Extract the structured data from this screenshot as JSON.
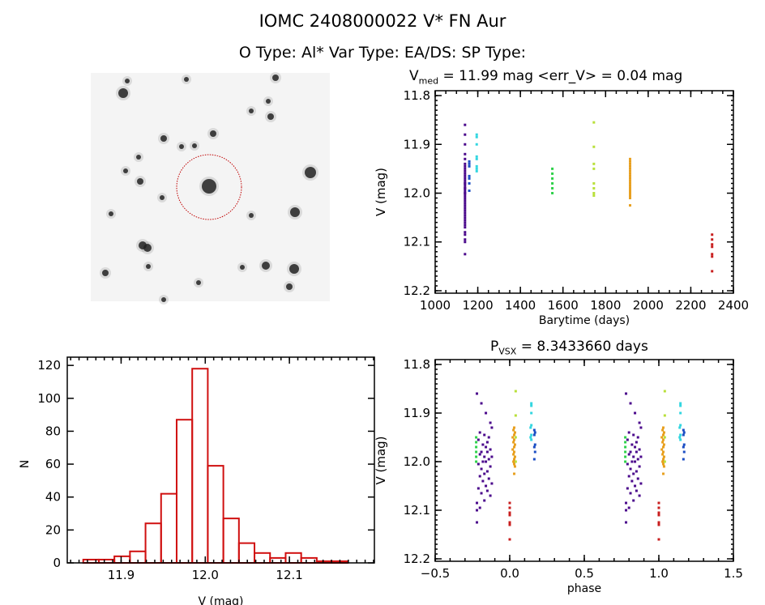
{
  "header": {
    "title": "IOMC 2408000022   V* FN Aur",
    "subtitle": "O Type: Al*  Var Type: EA/DS:  SP Type:"
  },
  "chart_data": [
    {
      "type": "image",
      "name": "finder-chart",
      "colors": {
        "circle": "#c00000",
        "stars": "#222222",
        "background": "#f4f4f4"
      }
    },
    {
      "type": "scatter",
      "title_main": "V",
      "title_sub": "med",
      "title_rest": " = 11.99 mag <err_V> = 0.04 mag",
      "xlabel": "Barytime (days)",
      "ylabel": "V (mag)",
      "xlim": [
        1000,
        2400
      ],
      "ylim": [
        12.205,
        11.79
      ],
      "y_inverted": true,
      "xticks": [
        1000,
        1200,
        1400,
        1600,
        1800,
        2000,
        2200,
        2400
      ],
      "yticks": [
        "11.8",
        "11.9",
        "12.0",
        "12.1",
        "12.2"
      ],
      "series": [
        {
          "color": "#4b0a8c",
          "time": 1140,
          "mags": [
            11.86,
            11.88,
            11.9,
            11.92,
            11.93,
            11.94,
            11.945,
            11.95,
            11.955,
            11.96,
            11.965,
            11.97,
            11.975,
            11.98,
            11.98,
            11.985,
            11.99,
            11.99,
            11.995,
            12.0,
            12.0,
            12.005,
            12.01,
            12.015,
            12.02,
            12.025,
            12.03,
            12.035,
            12.04,
            12.045,
            12.05,
            12.055,
            12.06,
            12.065,
            12.07,
            12.08,
            12.085,
            12.095,
            12.1,
            12.125
          ]
        },
        {
          "color": "#1d4fc4",
          "time": 1160,
          "mags": [
            11.935,
            11.94,
            11.945,
            11.965,
            11.97,
            11.98,
            11.995
          ]
        },
        {
          "color": "#33d6e0",
          "time": 1195,
          "mags": [
            11.88,
            11.885,
            11.9,
            11.925,
            11.93,
            11.945,
            11.95,
            11.955
          ]
        },
        {
          "color": "#2ed14a",
          "time": 1550,
          "mags": [
            11.95,
            11.96,
            11.97,
            11.98,
            11.99,
            12.0
          ]
        },
        {
          "color": "#b8e03a",
          "time": 1745,
          "mags": [
            11.855,
            11.905,
            11.94,
            11.95,
            11.98,
            11.99,
            12.0,
            12.005
          ]
        },
        {
          "color": "#e8a020",
          "time": 1915,
          "mags": [
            11.93,
            11.935,
            11.94,
            11.945,
            11.95,
            11.955,
            11.96,
            11.965,
            11.97,
            11.975,
            11.98,
            11.985,
            11.99,
            11.995,
            12.0,
            12.005,
            12.01,
            12.025
          ]
        },
        {
          "color": "#c81e1e",
          "time": 2300,
          "mags": [
            12.085,
            12.095,
            12.105,
            12.11,
            12.125,
            12.13,
            12.16
          ]
        }
      ]
    },
    {
      "type": "bar",
      "xlabel": "V (mag)",
      "ylabel": "N",
      "bin_start": 11.855,
      "bin_width": 0.0185,
      "counts": [
        2,
        2,
        4,
        7,
        24,
        42,
        87,
        118,
        59,
        27,
        12,
        6,
        3,
        6,
        3,
        1,
        1
      ],
      "xlim": [
        11.836,
        12.201
      ],
      "ylim": [
        0,
        125
      ],
      "xticks": [
        "11.9",
        "12.0",
        "12.1"
      ],
      "yticks": [
        "0",
        "20",
        "40",
        "60",
        "80",
        "100",
        "120"
      ],
      "color": "#d01010"
    },
    {
      "type": "scatter",
      "title_main": "P",
      "title_sub": "VSX",
      "title_rest": " = 8.3433660 days",
      "xlabel": "phase",
      "ylabel": "V (mag)",
      "xlim": [
        -0.5,
        1.5
      ],
      "ylim": [
        12.205,
        11.79
      ],
      "y_inverted": true,
      "xticks": [
        "-0.5",
        "0.0",
        "0.5",
        "1.0",
        "1.5"
      ],
      "yticks": [
        "11.8",
        "11.9",
        "12.0",
        "12.1",
        "12.2"
      ],
      "period_days": 8.343366,
      "series": [
        {
          "color": "#4b0a8c",
          "phases": [
            -0.22,
            -0.19,
            -0.16,
            -0.13,
            -0.12,
            -0.2,
            -0.17,
            -0.14,
            -0.21,
            -0.15,
            -0.18,
            -0.16,
            -0.13,
            -0.19,
            -0.15,
            -0.2,
            -0.17,
            -0.12,
            -0.14,
            -0.18,
            -0.16,
            -0.21,
            -0.13,
            -0.19,
            -0.15,
            -0.17,
            -0.2,
            -0.14,
            -0.18,
            -0.12,
            -0.16,
            -0.21,
            -0.15,
            -0.19,
            -0.13,
            -0.17,
            -0.22,
            -0.2,
            -0.22,
            -0.22
          ],
          "mags": [
            11.86,
            11.88,
            11.9,
            11.92,
            11.93,
            11.94,
            11.945,
            11.95,
            11.955,
            11.96,
            11.965,
            11.97,
            11.975,
            11.98,
            11.98,
            11.985,
            11.99,
            11.99,
            11.995,
            12.0,
            12.0,
            12.005,
            12.01,
            12.015,
            12.02,
            12.025,
            12.03,
            12.035,
            12.04,
            12.045,
            12.05,
            12.055,
            12.06,
            12.065,
            12.07,
            12.08,
            12.085,
            12.095,
            12.1,
            12.125
          ]
        },
        {
          "color": "#1d4fc4",
          "phases": [
            0.165,
            0.17,
            0.165,
            0.17,
            0.165,
            0.17,
            0.165
          ],
          "mags": [
            11.935,
            11.94,
            11.945,
            11.965,
            11.97,
            11.98,
            11.995
          ]
        },
        {
          "color": "#33d6e0",
          "phases": [
            0.145,
            0.145,
            0.145,
            0.145,
            0.14,
            0.145,
            0.14,
            0.145
          ],
          "mags": [
            11.88,
            11.885,
            11.9,
            11.925,
            11.93,
            11.945,
            11.95,
            11.955
          ]
        },
        {
          "color": "#2ed14a",
          "phases": [
            -0.225,
            -0.225,
            -0.225,
            -0.225,
            -0.225,
            -0.225
          ],
          "mags": [
            11.95,
            11.96,
            11.97,
            11.98,
            11.99,
            12.0
          ]
        },
        {
          "color": "#b8e03a",
          "phases": [
            0.04,
            0.04,
            0.035,
            0.04,
            0.03,
            0.035,
            0.04,
            0.03
          ],
          "mags": [
            11.855,
            11.905,
            11.94,
            11.95,
            11.98,
            11.99,
            12.0,
            12.005
          ]
        },
        {
          "color": "#e8a020",
          "phases": [
            0.03,
            0.025,
            0.035,
            0.03,
            0.02,
            0.03,
            0.025,
            0.035,
            0.03,
            0.02,
            0.03,
            0.025,
            0.035,
            0.03,
            0.025,
            0.03,
            0.035,
            0.03
          ],
          "mags": [
            11.93,
            11.935,
            11.94,
            11.945,
            11.95,
            11.955,
            11.96,
            11.965,
            11.97,
            11.975,
            11.98,
            11.985,
            11.99,
            11.995,
            12.0,
            12.005,
            12.01,
            12.025
          ]
        },
        {
          "color": "#c81e1e",
          "phases": [
            0.0,
            0.0,
            0.0,
            0.0,
            0.0,
            0.0,
            0.0
          ],
          "mags": [
            12.085,
            12.095,
            12.105,
            12.11,
            12.125,
            12.13,
            12.16
          ]
        }
      ]
    }
  ]
}
